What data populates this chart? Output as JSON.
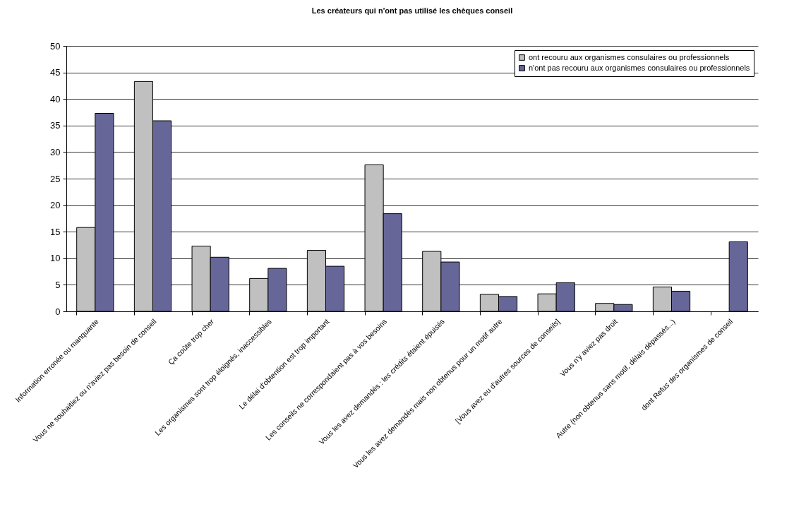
{
  "chart_data": {
    "type": "bar",
    "title": "Les créateurs qui n'ont pas utilisé les chèques conseil",
    "categories": [
      "Information erronée ou manquante",
      "Vous ne souhaitiez ou n'aviez pas besoin de conseil",
      "Ça coûte trop cher",
      "Les organismes sont trop éloignés, inaccessibles",
      "Le délai d'obtention est trop important",
      "Les conseils ne correspondaient pas à vos besoins",
      "Vous les avez demandés : les crédits étaient épuisés",
      "Vous les avez demandés mais non obtenus pour un motif autre",
      "[Vous avez eu d'autres sources de conseils]",
      "Vous n'y aviez pas droit",
      "Autre (non obtenus sans motif, délais dépassés...)",
      "dont Refus des organismes de conseil"
    ],
    "series": [
      {
        "name": "ont recouru aux organismes consulaires ou professionnels",
        "color": "#c0c0c0",
        "values": [
          15.8,
          43.3,
          12.3,
          6.2,
          11.5,
          27.6,
          11.3,
          3.2,
          3.3,
          1.5,
          4.6,
          null
        ]
      },
      {
        "name": "n'ont pas recouru aux organismes consulaires ou professionnels",
        "color": "#666699",
        "values": [
          37.3,
          35.9,
          10.2,
          8.1,
          8.5,
          18.4,
          9.3,
          2.8,
          5.4,
          1.3,
          3.8,
          13.1
        ]
      }
    ],
    "ylim": [
      0,
      50
    ],
    "yticks": [
      0,
      5,
      10,
      15,
      20,
      25,
      30,
      35,
      40,
      45,
      50
    ],
    "grid": "y",
    "legend": "top right"
  }
}
